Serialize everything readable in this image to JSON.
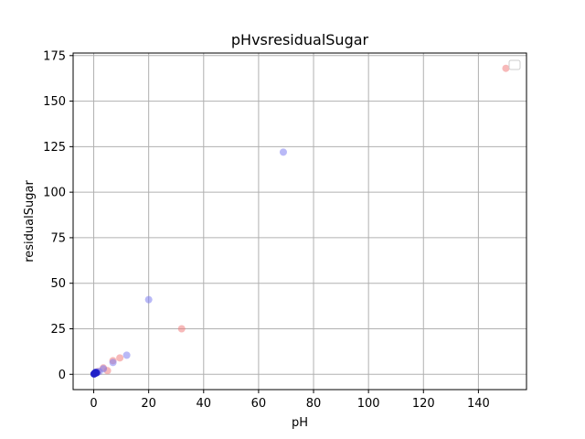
{
  "chart_data": {
    "type": "scatter",
    "title": "pHvsresidualSugar",
    "xlabel": "pH",
    "ylabel": "residualSugar",
    "xlim": [
      -7.5,
      157.5
    ],
    "ylim": [
      -8.4,
      176.4
    ],
    "xticks": [
      0,
      20,
      40,
      60,
      80,
      100,
      120,
      140
    ],
    "yticks": [
      0,
      25,
      50,
      75,
      100,
      125,
      150,
      175
    ],
    "grid": true,
    "legend": "top-right",
    "series": [
      {
        "color": "#f08080",
        "points": [
          [
            150,
            168
          ],
          [
            32,
            25
          ],
          [
            9.5,
            9
          ],
          [
            7,
            7.5
          ],
          [
            5,
            2
          ],
          [
            3.5,
            3.5
          ],
          [
            1.5,
            1.5
          ],
          [
            0.8,
            0.8
          ],
          [
            0.3,
            0.4
          ]
        ]
      },
      {
        "color": "#7f7ff0",
        "points": [
          [
            69,
            122
          ],
          [
            20,
            41
          ],
          [
            12,
            10.5
          ],
          [
            7,
            6.5
          ],
          [
            3.5,
            3
          ],
          [
            2,
            1.5
          ],
          [
            1.2,
            1.2
          ],
          [
            0.5,
            0.5
          ],
          [
            0.2,
            0.2
          ]
        ]
      },
      {
        "color": "#2020c8",
        "points": [
          [
            0.3,
            0.5
          ],
          [
            0.1,
            0.2
          ],
          [
            0.6,
            1.0
          ],
          [
            1.0,
            0.8
          ]
        ]
      }
    ]
  }
}
